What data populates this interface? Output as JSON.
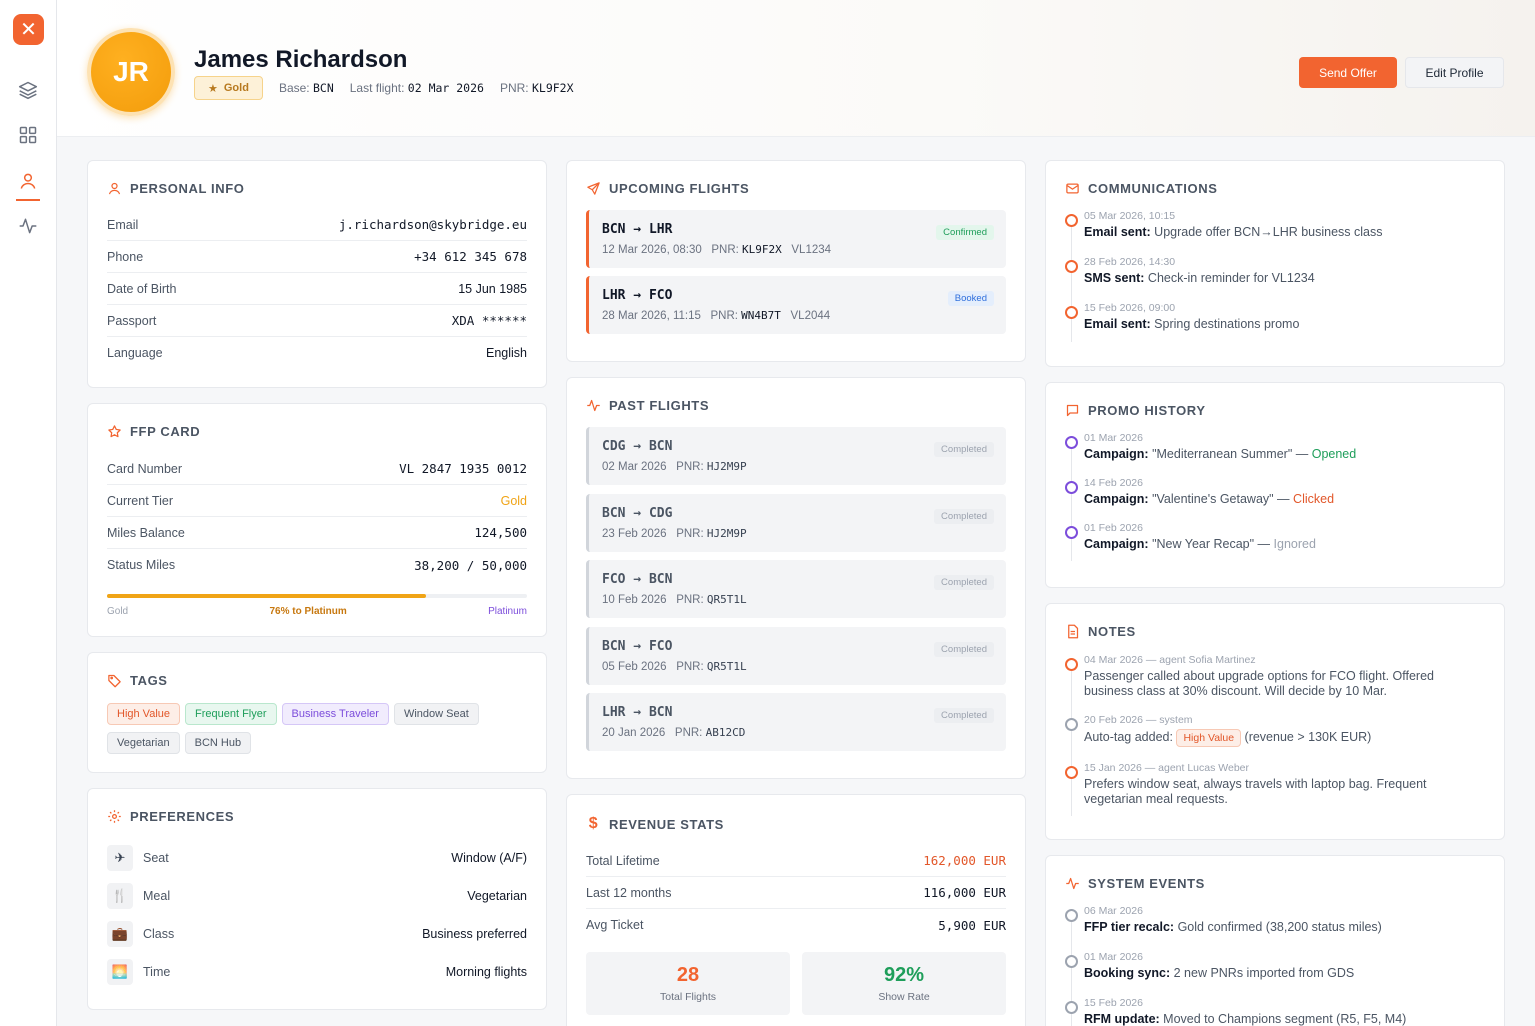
{
  "header": {
    "initials": "JR",
    "name": "James Richardson",
    "tier_badge": "Gold",
    "base_label": "Base:",
    "base_value": "BCN",
    "last_flight_label": "Last flight:",
    "last_flight_value": "02 Mar 2026",
    "pnr_label": "PNR:",
    "pnr_value": "KL9F2X",
    "send_offer": "Send Offer",
    "edit_profile": "Edit Profile"
  },
  "sidebar": {
    "logo": "✕",
    "icons": [
      "layers-icon",
      "grid-icon",
      "user-icon",
      "activity-icon"
    ],
    "active": "user-icon"
  },
  "personal_info": {
    "title": "PERSONAL INFO",
    "rows": [
      {
        "k": "Email",
        "v": "j.richardson@skybridge.eu"
      },
      {
        "k": "Phone",
        "v": "+34 612 345 678"
      },
      {
        "k": "Date of Birth",
        "v": "15 Jun 1985"
      },
      {
        "k": "Passport",
        "v": "XDA ******"
      },
      {
        "k": "Language",
        "v": "English"
      }
    ]
  },
  "ffp_card": {
    "title": "FFP CARD",
    "rows": [
      {
        "k": "Card Number",
        "v": "VL 2847 1935 0012"
      },
      {
        "k": "Current Tier",
        "v": "Gold"
      },
      {
        "k": "Miles Balance",
        "v": "124,500"
      },
      {
        "k": "Status Miles",
        "v": "38,200 / 50,000"
      }
    ],
    "progress_fraction": 0.76,
    "progress_from": "Gold",
    "progress_label": "76% to Platinum",
    "progress_to": "Platinum",
    "gold_color": "#f0a416",
    "platinum_color": "#7c4ddb"
  },
  "tags": {
    "title": "TAGS",
    "items": [
      {
        "label": "High Value",
        "style": "orange"
      },
      {
        "label": "Frequent Flyer",
        "style": "green"
      },
      {
        "label": "Business Traveler",
        "style": "purple"
      },
      {
        "label": "Window Seat",
        "style": "gray"
      },
      {
        "label": "Vegetarian",
        "style": "gray"
      },
      {
        "label": "BCN Hub",
        "style": "gray"
      }
    ]
  },
  "preferences": {
    "title": "PREFERENCES",
    "items": [
      {
        "icon": "✈",
        "k": "Seat",
        "v": "Window (A/F)"
      },
      {
        "icon": "🍴",
        "k": "Meal",
        "v": "Vegetarian"
      },
      {
        "icon": "💼",
        "k": "Class",
        "v": "Business preferred"
      },
      {
        "icon": "🌅",
        "k": "Time",
        "v": "Morning flights"
      }
    ]
  },
  "upcoming_flights": {
    "title": "UPCOMING FLIGHTS",
    "items": [
      {
        "route": "BCN → LHR",
        "date": "12 Mar 2026, 08:30",
        "pnr_label": "PNR:",
        "pnr": "KL9F2X",
        "flight_no": "VL1234",
        "status": "Confirmed"
      },
      {
        "route": "LHR → FCO",
        "date": "28 Mar 2026, 11:15",
        "pnr_label": "PNR:",
        "pnr": "WN4B7T",
        "flight_no": "VL2044",
        "status": "Booked"
      }
    ]
  },
  "past_flights": {
    "title": "PAST FLIGHTS",
    "items": [
      {
        "route": "CDG → BCN",
        "date": "02 Mar 2026",
        "pnr_label": "PNR:",
        "pnr": "HJ2M9P",
        "status": "Completed"
      },
      {
        "route": "BCN → CDG",
        "date": "23 Feb 2026",
        "pnr_label": "PNR:",
        "pnr": "HJ2M9P",
        "status": "Completed"
      },
      {
        "route": "FCO → BCN",
        "date": "10 Feb 2026",
        "pnr_label": "PNR:",
        "pnr": "QR5T1L",
        "status": "Completed"
      },
      {
        "route": "BCN → FCO",
        "date": "05 Feb 2026",
        "pnr_label": "PNR:",
        "pnr": "QR5T1L",
        "status": "Completed"
      },
      {
        "route": "LHR → BCN",
        "date": "20 Jan 2026",
        "pnr_label": "PNR:",
        "pnr": "AB12CD",
        "status": "Completed"
      }
    ]
  },
  "revenue": {
    "title": "REVENUE STATS",
    "rows": [
      {
        "k": "Total Lifetime",
        "v": "162,000 EUR"
      },
      {
        "k": "Last 12 months",
        "v": "116,000 EUR"
      },
      {
        "k": "Avg Ticket",
        "v": "5,900 EUR"
      }
    ],
    "total_flights": "28",
    "total_flights_label": "Total Flights",
    "show_rate": "92%",
    "show_rate_label": "Show Rate"
  },
  "communications": {
    "title": "COMMUNICATIONS",
    "items": [
      {
        "date": "05 Mar 2026, 10:15",
        "label": "Email sent:",
        "text": "Upgrade offer BCN→LHR business class"
      },
      {
        "date": "28 Feb 2026, 14:30",
        "label": "SMS sent:",
        "text": "Check-in reminder for VL1234"
      },
      {
        "date": "15 Feb 2026, 09:00",
        "label": "Email sent:",
        "text": "Spring destinations promo"
      }
    ]
  },
  "promo_history": {
    "title": "PROMO HISTORY",
    "items": [
      {
        "date": "01 Mar 2026",
        "label": "Campaign:",
        "text": "\"Mediterranean Summer\" —",
        "result": "Opened",
        "color": "#1e9e5a"
      },
      {
        "date": "14 Feb 2026",
        "label": "Campaign:",
        "text": "\"Valentine's Getaway\" —",
        "result": "Clicked",
        "color": "#e2572a"
      },
      {
        "date": "01 Feb 2026",
        "label": "Campaign:",
        "text": "\"New Year Recap\" —",
        "result": "Ignored",
        "color": "#9ca3af"
      }
    ]
  },
  "notes": {
    "title": "NOTES",
    "items": [
      {
        "date": "04 Mar 2026 — agent Sofia Martinez",
        "text": "Passenger called about upgrade options for FCO flight. Offered business class at 30% discount. Will decide by 10 Mar."
      },
      {
        "date": "20 Feb 2026 — system",
        "prefix": "Auto-tag added:",
        "tag": "High Value",
        "suffix": "(revenue > 130K EUR)"
      },
      {
        "date": "15 Jan 2026 — agent Lucas Weber",
        "text": "Prefers window seat, always travels with laptop bag. Frequent vegetarian meal requests."
      }
    ]
  },
  "system_events": {
    "title": "SYSTEM EVENTS",
    "items": [
      {
        "date": "06 Mar 2026",
        "label": "FFP tier recalc:",
        "text": "Gold confirmed (38,200 status miles)"
      },
      {
        "date": "01 Mar 2026",
        "label": "Booking sync:",
        "text": "2 new PNRs imported from GDS"
      },
      {
        "date": "15 Feb 2026",
        "label": "RFM update:",
        "text": "Moved to Champions segment (R5, F5, M4)"
      }
    ]
  }
}
